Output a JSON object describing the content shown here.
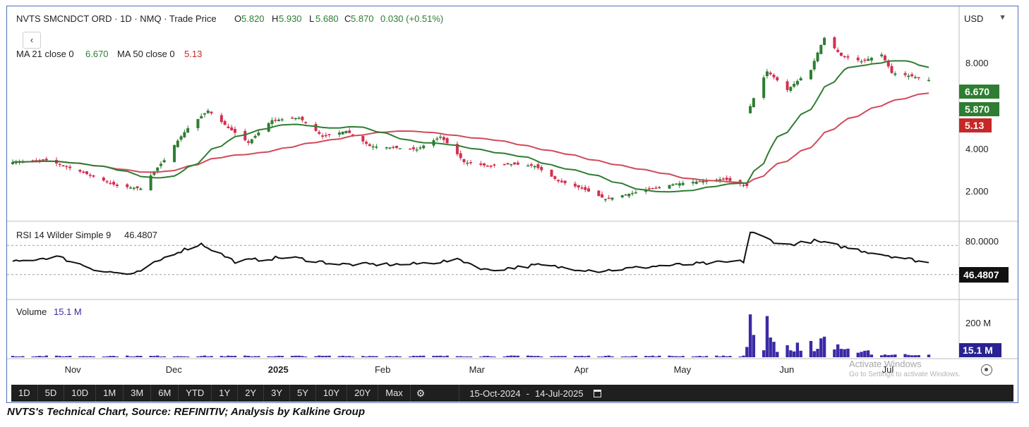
{
  "header": {
    "symbol_line": "NVTS SMCNDCT ORD · 1D · NMQ · Trade Price",
    "open_label": "O",
    "open": "5.820",
    "high_label": "H",
    "high": "5.930",
    "low_label": "L",
    "low": "5.680",
    "close_label": "C",
    "close": "5.870",
    "change": "0.030 (+0.51%)",
    "ma21_label": "MA 21 close 0",
    "ma21_value": "6.670",
    "ma50_label": "MA 50 close 0",
    "ma50_value": "5.13",
    "currency": "USD",
    "collapse_glyph": "‹"
  },
  "rsi": {
    "label": "RSI 14 Wilder Simple 9",
    "value": "46.4807",
    "tick": "80.0000"
  },
  "volume": {
    "label": "Volume",
    "value": "15.1 M",
    "tick": "200 M"
  },
  "price_axis": {
    "ticks": [
      "8.000",
      "4.000",
      "2.000"
    ]
  },
  "tags": {
    "ma21": "6.670",
    "close": "5.870",
    "ma50": "5.13"
  },
  "colors": {
    "up": "#2e7d32",
    "down": "#d32f4f",
    "ma21": "#2e7d32",
    "ma50": "#d04a5a",
    "rsi": "#111111",
    "volume": "#3a2aa6",
    "close_tag": "#2e7d32",
    "ma50_tag": "#c62828",
    "rsi_tag": "#111111"
  },
  "months": [
    {
      "label": "Nov",
      "bold": false
    },
    {
      "label": "Dec",
      "bold": false
    },
    {
      "label": "2025",
      "bold": true
    },
    {
      "label": "Feb",
      "bold": false
    },
    {
      "label": "Mar",
      "bold": false
    },
    {
      "label": "Apr",
      "bold": false
    },
    {
      "label": "May",
      "bold": false
    },
    {
      "label": "Jun",
      "bold": false
    },
    {
      "label": "Jul",
      "bold": false
    }
  ],
  "toolbar": {
    "ranges": [
      "1D",
      "5D",
      "10D",
      "1M",
      "3M",
      "6M",
      "YTD",
      "1Y",
      "2Y",
      "3Y",
      "5Y",
      "10Y",
      "20Y",
      "Max"
    ],
    "date_from": "15-Oct-2024",
    "date_sep": "-",
    "date_to": "14-Jul-2025"
  },
  "watermark": {
    "line1": "Activate Windows",
    "line2": "Go to Settings to activate Windows."
  },
  "caption": "NVTS's Technical Chart, Source: REFINITIV; Analysis by Kalkine Group",
  "chart_data": {
    "type": "candlestick",
    "price_scale": "log",
    "price_range": [
      1.45,
      10.0
    ],
    "rsi_range": [
      0,
      100
    ],
    "volume_range_millions": [
      0,
      300
    ],
    "start_date": "2024-10-15",
    "end_date": "2025-07-14",
    "close_anchors": [
      [
        "2024-10-15",
        2.55
      ],
      [
        "2024-10-25",
        2.6
      ],
      [
        "2024-11-01",
        2.4
      ],
      [
        "2024-11-08",
        2.2
      ],
      [
        "2024-11-15",
        2.0
      ],
      [
        "2024-11-22",
        1.95
      ],
      [
        "2024-11-29",
        2.6
      ],
      [
        "2024-12-06",
        3.6
      ],
      [
        "2024-12-12",
        4.3
      ],
      [
        "2024-12-18",
        3.6
      ],
      [
        "2024-12-24",
        3.1
      ],
      [
        "2024-12-31",
        3.9
      ],
      [
        "2025-01-08",
        4.0
      ],
      [
        "2025-01-15",
        3.3
      ],
      [
        "2025-01-22",
        3.5
      ],
      [
        "2025-01-29",
        3.0
      ],
      [
        "2025-02-05",
        2.95
      ],
      [
        "2025-02-12",
        2.9
      ],
      [
        "2025-02-19",
        3.3
      ],
      [
        "2025-02-26",
        2.55
      ],
      [
        "2025-03-05",
        2.45
      ],
      [
        "2025-03-12",
        2.5
      ],
      [
        "2025-03-19",
        2.45
      ],
      [
        "2025-03-26",
        2.1
      ],
      [
        "2025-04-02",
        1.95
      ],
      [
        "2025-04-09",
        1.75
      ],
      [
        "2025-04-16",
        1.85
      ],
      [
        "2025-04-23",
        1.95
      ],
      [
        "2025-04-30",
        2.05
      ],
      [
        "2025-05-07",
        2.1
      ],
      [
        "2025-05-14",
        2.15
      ],
      [
        "2025-05-21",
        2.0
      ],
      [
        "2025-05-22",
        4.5
      ],
      [
        "2025-05-27",
        6.4
      ],
      [
        "2025-06-02",
        5.3
      ],
      [
        "2025-06-09",
        6.5
      ],
      [
        "2025-06-13",
        9.0
      ],
      [
        "2025-06-18",
        7.5
      ],
      [
        "2025-06-24",
        7.1
      ],
      [
        "2025-06-30",
        7.6
      ],
      [
        "2025-07-03",
        6.3
      ],
      [
        "2025-07-09",
        6.1
      ],
      [
        "2025-07-14",
        5.87
      ]
    ],
    "ma21_end": 6.67,
    "ma50_end": 5.13,
    "rsi_anchors": [
      [
        "2024-10-15",
        47
      ],
      [
        "2024-10-28",
        55
      ],
      [
        "2024-11-10",
        35
      ],
      [
        "2024-11-20",
        30
      ],
      [
        "2024-12-01",
        58
      ],
      [
        "2024-12-10",
        72
      ],
      [
        "2024-12-20",
        48
      ],
      [
        "2025-01-05",
        54
      ],
      [
        "2025-01-20",
        44
      ],
      [
        "2025-02-10",
        44
      ],
      [
        "2025-02-25",
        50
      ],
      [
        "2025-03-05",
        36
      ],
      [
        "2025-03-20",
        43
      ],
      [
        "2025-04-07",
        35
      ],
      [
        "2025-04-25",
        42
      ],
      [
        "2025-05-20",
        48
      ],
      [
        "2025-05-22",
        88
      ],
      [
        "2025-06-01",
        70
      ],
      [
        "2025-06-10",
        76
      ],
      [
        "2025-06-25",
        62
      ],
      [
        "2025-07-14",
        46.48
      ]
    ],
    "rsi_dashed_levels": [
      70,
      30
    ],
    "volume_latest_millions": 15.1,
    "volume_spike_millions": [
      [
        "2025-05-21",
        60
      ],
      [
        "2025-05-22",
        250
      ],
      [
        "2025-05-23",
        130
      ],
      [
        "2025-05-27",
        240
      ],
      [
        "2025-05-28",
        115
      ],
      [
        "2025-05-29",
        90
      ],
      [
        "2025-06-02",
        70
      ],
      [
        "2025-06-05",
        85
      ],
      [
        "2025-06-09",
        95
      ],
      [
        "2025-06-12",
        110
      ],
      [
        "2025-06-13",
        120
      ],
      [
        "2025-06-17",
        75
      ],
      [
        "2025-06-20",
        50
      ],
      [
        "2025-06-26",
        40
      ]
    ]
  }
}
